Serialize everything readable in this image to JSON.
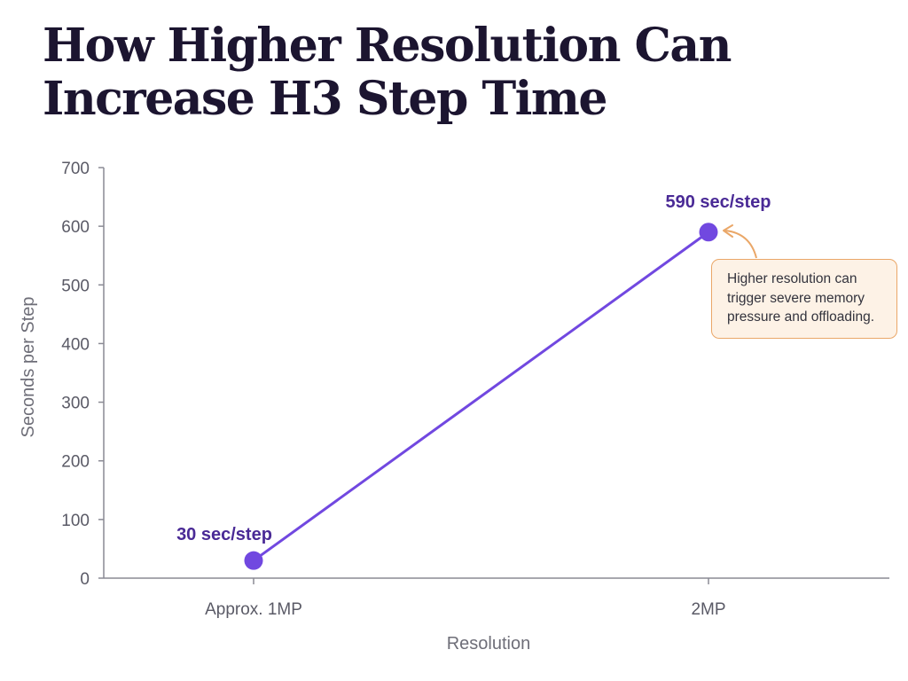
{
  "title_lines": [
    "How Higher Resolution Can",
    "Increase H3 Step Time"
  ],
  "chart_data": {
    "type": "line",
    "title": "How Higher Resolution Can Increase H3 Step Time",
    "xlabel": "Resolution",
    "ylabel": "Seconds per Step",
    "categories": [
      "Approx. 1MP",
      "2MP"
    ],
    "series": [
      {
        "values": [
          30,
          590
        ],
        "data_labels": [
          "30 sec/step",
          "590 sec/step"
        ]
      }
    ],
    "ylim": [
      0,
      700
    ],
    "yticks": [
      0,
      100,
      200,
      300,
      400,
      500,
      600,
      700
    ],
    "grid": false,
    "annotation": {
      "lines": [
        "Higher resolution can",
        "trigger severe memory",
        "pressure and offloading."
      ],
      "target": "2MP"
    }
  },
  "colors": {
    "title": "#1c1530",
    "line": "#7148e0",
    "marker": "#7148e0",
    "data_label": "#4a2a96",
    "axis": "#8a8a94",
    "callout_fill": "#fdf2e6",
    "callout_border": "#eaa768",
    "arrow": "#eaa768"
  }
}
